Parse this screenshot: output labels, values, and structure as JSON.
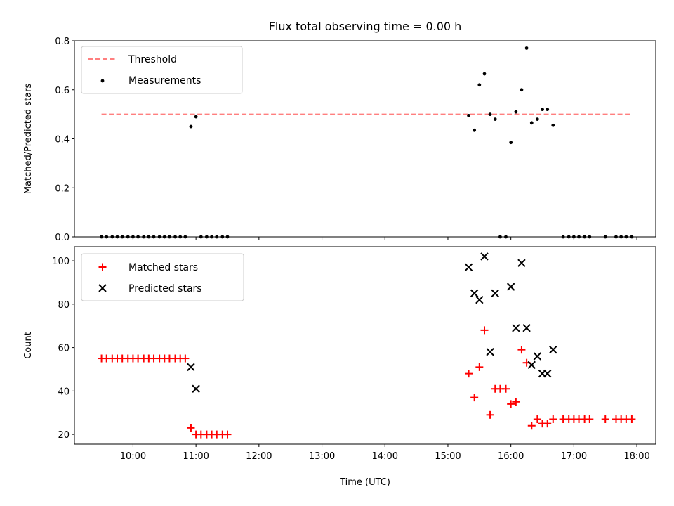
{
  "title": "Flux total observing time = 0.00 h",
  "colors": {
    "threshold": "#ff7f7f",
    "measurements": "#000000",
    "matched": "#ff0000",
    "predicted": "#000000"
  },
  "chart_data": [
    {
      "type": "scatter",
      "title": "Flux total observing time = 0.00 h",
      "xlabel": "",
      "ylabel": "Matched/Predicted stars",
      "xlim_hours": [
        9.07,
        18.3
      ],
      "ylim": [
        0,
        0.8
      ],
      "yticks": [
        0.0,
        0.2,
        0.4,
        0.6,
        0.8
      ],
      "ytick_labels": [
        "0.0",
        "0.2",
        "0.4",
        "0.6",
        "0.8"
      ],
      "legend_position": "upper left",
      "threshold": {
        "name": "Threshold",
        "value": 0.5,
        "x_range": [
          9.5,
          17.92
        ]
      },
      "series": [
        {
          "name": "Measurements",
          "points": [
            [
              9.5,
              0
            ],
            [
              9.58,
              0
            ],
            [
              9.67,
              0
            ],
            [
              9.75,
              0
            ],
            [
              9.83,
              0
            ],
            [
              9.92,
              0
            ],
            [
              10.0,
              0
            ],
            [
              10.08,
              0
            ],
            [
              10.17,
              0
            ],
            [
              10.25,
              0
            ],
            [
              10.33,
              0
            ],
            [
              10.42,
              0
            ],
            [
              10.5,
              0
            ],
            [
              10.58,
              0
            ],
            [
              10.67,
              0
            ],
            [
              10.75,
              0
            ],
            [
              10.83,
              0
            ],
            [
              10.92,
              0.45
            ],
            [
              11.0,
              0.49
            ],
            [
              11.08,
              0
            ],
            [
              11.17,
              0
            ],
            [
              11.25,
              0
            ],
            [
              11.33,
              0
            ],
            [
              11.42,
              0
            ],
            [
              11.5,
              0
            ],
            [
              15.33,
              0.495
            ],
            [
              15.42,
              0.435
            ],
            [
              15.5,
              0.62
            ],
            [
              15.58,
              0.665
            ],
            [
              15.67,
              0.5
            ],
            [
              15.75,
              0.48
            ],
            [
              15.83,
              0.0
            ],
            [
              15.92,
              0.0
            ],
            [
              16.0,
              0.385
            ],
            [
              16.08,
              0.51
            ],
            [
              16.17,
              0.6
            ],
            [
              16.25,
              0.77
            ],
            [
              16.33,
              0.465
            ],
            [
              16.42,
              0.48
            ],
            [
              16.5,
              0.52
            ],
            [
              16.58,
              0.52
            ],
            [
              16.67,
              0.455
            ],
            [
              16.83,
              0
            ],
            [
              16.92,
              0
            ],
            [
              17.0,
              0
            ],
            [
              17.08,
              0
            ],
            [
              17.17,
              0
            ],
            [
              17.25,
              0
            ],
            [
              17.5,
              0
            ],
            [
              17.67,
              0
            ],
            [
              17.75,
              0
            ],
            [
              17.83,
              0
            ],
            [
              17.92,
              0
            ]
          ]
        }
      ]
    },
    {
      "type": "scatter",
      "title": "",
      "xlabel": "Time (UTC)",
      "ylabel": "Count",
      "xlim_hours": [
        9.07,
        18.3
      ],
      "ylim": [
        15.5,
        106.5
      ],
      "yticks": [
        20,
        40,
        60,
        80,
        100
      ],
      "ytick_labels": [
        "20",
        "40",
        "60",
        "80",
        "100"
      ],
      "xticks_hours": [
        10,
        11,
        12,
        13,
        14,
        15,
        16,
        17,
        18
      ],
      "xtick_labels": [
        "10:00",
        "11:00",
        "12:00",
        "13:00",
        "14:00",
        "15:00",
        "16:00",
        "17:00",
        "18:00"
      ],
      "legend_position": "upper left",
      "series": [
        {
          "name": "Matched stars",
          "marker": "+",
          "points": [
            [
              9.5,
              55
            ],
            [
              9.58,
              55
            ],
            [
              9.67,
              55
            ],
            [
              9.75,
              55
            ],
            [
              9.83,
              55
            ],
            [
              9.92,
              55
            ],
            [
              10.0,
              55
            ],
            [
              10.08,
              55
            ],
            [
              10.17,
              55
            ],
            [
              10.25,
              55
            ],
            [
              10.33,
              55
            ],
            [
              10.42,
              55
            ],
            [
              10.5,
              55
            ],
            [
              10.58,
              55
            ],
            [
              10.67,
              55
            ],
            [
              10.75,
              55
            ],
            [
              10.83,
              55
            ],
            [
              10.92,
              23
            ],
            [
              11.0,
              20
            ],
            [
              11.08,
              20
            ],
            [
              11.17,
              20
            ],
            [
              11.25,
              20
            ],
            [
              11.33,
              20
            ],
            [
              11.42,
              20
            ],
            [
              11.5,
              20
            ],
            [
              15.33,
              48
            ],
            [
              15.42,
              37
            ],
            [
              15.5,
              51
            ],
            [
              15.58,
              68
            ],
            [
              15.67,
              29
            ],
            [
              15.75,
              41
            ],
            [
              15.83,
              41
            ],
            [
              15.92,
              41
            ],
            [
              16.0,
              34
            ],
            [
              16.08,
              35
            ],
            [
              16.17,
              59
            ],
            [
              16.25,
              53
            ],
            [
              16.33,
              24
            ],
            [
              16.42,
              27
            ],
            [
              16.5,
              25
            ],
            [
              16.58,
              25
            ],
            [
              16.67,
              27
            ],
            [
              16.83,
              27
            ],
            [
              16.92,
              27
            ],
            [
              17.0,
              27
            ],
            [
              17.08,
              27
            ],
            [
              17.17,
              27
            ],
            [
              17.25,
              27
            ],
            [
              17.5,
              27
            ],
            [
              17.67,
              27
            ],
            [
              17.75,
              27
            ],
            [
              17.83,
              27
            ],
            [
              17.92,
              27
            ]
          ]
        },
        {
          "name": "Predicted stars",
          "marker": "x",
          "points": [
            [
              10.92,
              51
            ],
            [
              11.0,
              41
            ],
            [
              15.33,
              97
            ],
            [
              15.42,
              85
            ],
            [
              15.5,
              82
            ],
            [
              15.58,
              102
            ],
            [
              15.67,
              58
            ],
            [
              15.75,
              85
            ],
            [
              16.0,
              88
            ],
            [
              16.08,
              69
            ],
            [
              16.17,
              99
            ],
            [
              16.25,
              69
            ],
            [
              16.33,
              52
            ],
            [
              16.42,
              56
            ],
            [
              16.5,
              48
            ],
            [
              16.58,
              48
            ],
            [
              16.67,
              59
            ]
          ]
        }
      ]
    }
  ]
}
